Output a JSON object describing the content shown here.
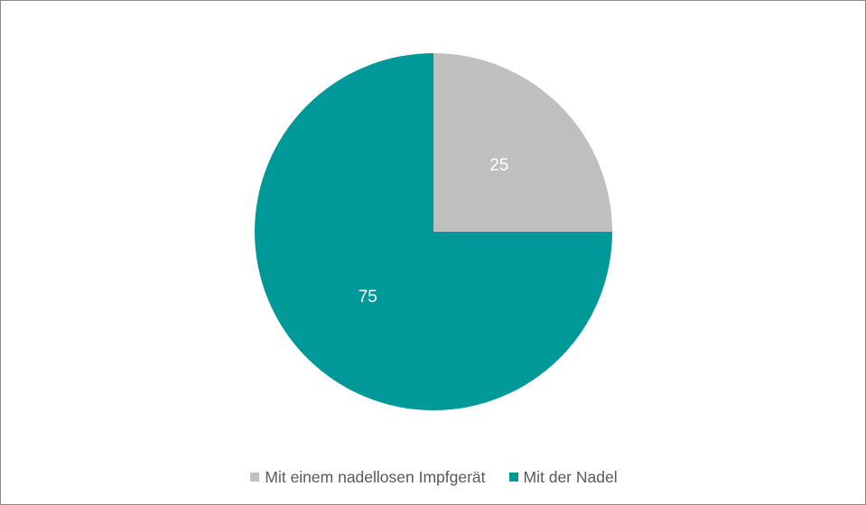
{
  "chart_data": {
    "type": "pie",
    "title": "",
    "categories": [
      "Mit einem nadellosen Impfgerät",
      "Mit der Nadel"
    ],
    "values": [
      25,
      75
    ],
    "colors": [
      "#bfbfbf",
      "#009999"
    ],
    "data_labels": [
      "25",
      "75"
    ],
    "start_angle_deg": 0,
    "direction": "clockwise",
    "legend_position": "bottom"
  }
}
